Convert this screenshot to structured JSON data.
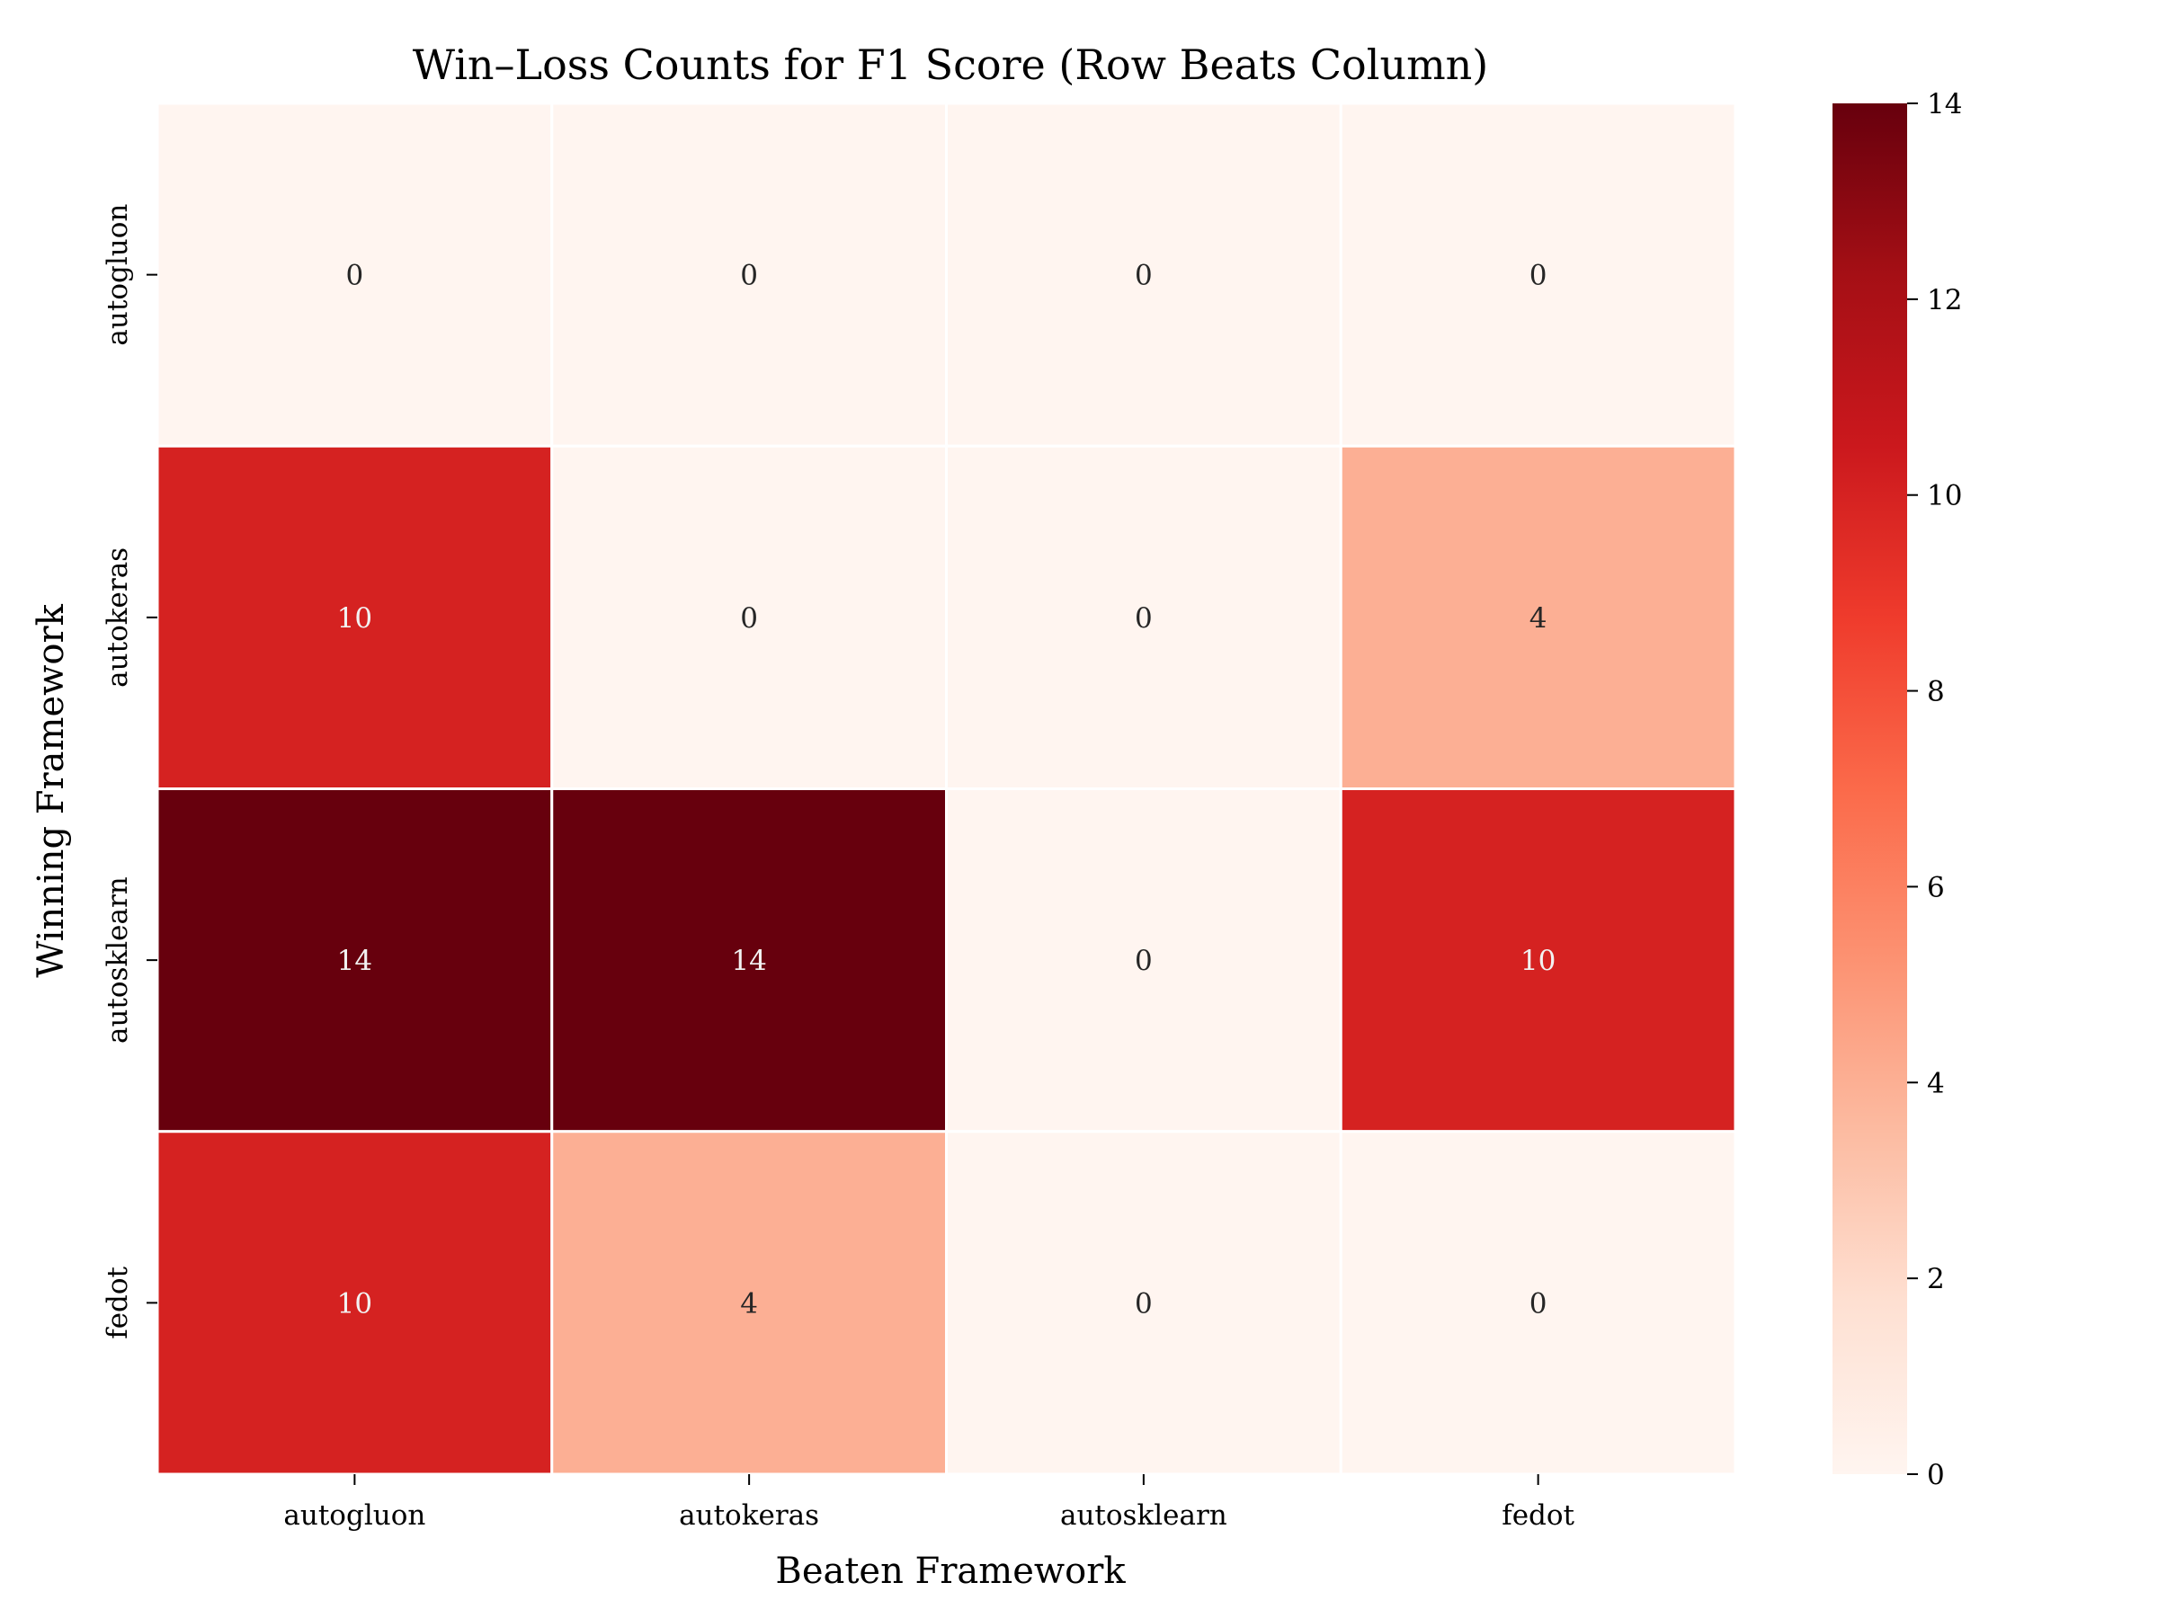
{
  "chart_data": {
    "type": "heatmap",
    "title": "Win–Loss Counts for F1 Score (Row Beats Column)",
    "xlabel": "Beaten Framework",
    "ylabel": "Winning Framework",
    "x_categories": [
      "autogluon",
      "autokeras",
      "autosklearn",
      "fedot"
    ],
    "y_categories": [
      "autogluon",
      "autokeras",
      "autosklearn",
      "fedot"
    ],
    "values": [
      [
        0,
        0,
        0,
        0
      ],
      [
        10,
        0,
        0,
        4
      ],
      [
        14,
        14,
        0,
        10
      ],
      [
        10,
        4,
        0,
        0
      ]
    ],
    "colorbar": {
      "min": 0,
      "max": 14,
      "ticks": [
        "0",
        "2",
        "4",
        "6",
        "8",
        "10",
        "12",
        "14"
      ]
    },
    "colormap": "Reds",
    "colors": {
      "low": "#fff5f0",
      "high": "#67000d",
      "cell_border": "#ffffff"
    }
  }
}
